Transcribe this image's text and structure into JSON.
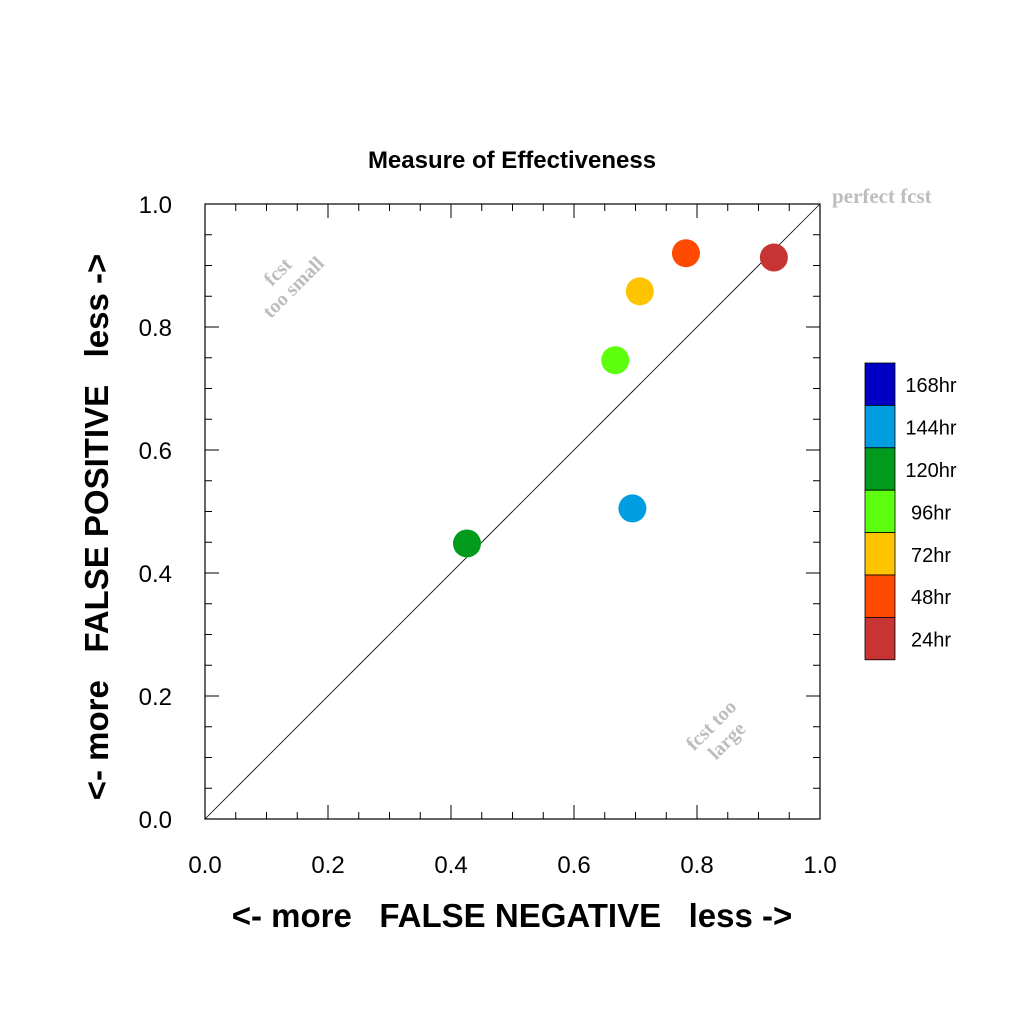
{
  "chart_data": {
    "type": "scatter",
    "title": "Measure of Effectiveness",
    "xlabel": "<- more   FALSE NEGATIVE   less ->",
    "ylabel": "<- more   FALSE POSITIVE   less ->",
    "xlim": [
      0,
      1
    ],
    "ylim": [
      0,
      1
    ],
    "xticks": [
      "0.0",
      "0.2",
      "0.4",
      "0.6",
      "0.8",
      "1.0"
    ],
    "yticks": [
      "0.0",
      "0.2",
      "0.4",
      "0.6",
      "0.8",
      "1.0"
    ],
    "diagonal_label": "perfect fcst",
    "annotations": {
      "too_small": [
        "fcst",
        "too small"
      ],
      "too_large": [
        "fcst too",
        "large"
      ]
    },
    "legend_position": "right",
    "legend": [
      {
        "label": "168hr",
        "color": "#0000c4"
      },
      {
        "label": "144hr",
        "color": "#009ee0"
      },
      {
        "label": "120hr",
        "color": "#009a1c"
      },
      {
        "label": "96hr",
        "color": "#5cff0e"
      },
      {
        "label": "72hr",
        "color": "#ffc400"
      },
      {
        "label": "48hr",
        "color": "#ff4a00"
      },
      {
        "label": "24hr",
        "color": "#c83434"
      }
    ],
    "points": [
      {
        "series": "24hr",
        "x": 0.925,
        "y": 0.913,
        "color": "#c83434"
      },
      {
        "series": "48hr",
        "x": 0.782,
        "y": 0.92,
        "color": "#ff4a00"
      },
      {
        "series": "72hr",
        "x": 0.707,
        "y": 0.858,
        "color": "#ffc400"
      },
      {
        "series": "96hr",
        "x": 0.667,
        "y": 0.746,
        "color": "#5cff0e"
      },
      {
        "series": "120hr",
        "x": 0.426,
        "y": 0.448,
        "color": "#009a1c"
      },
      {
        "series": "144hr",
        "x": 0.695,
        "y": 0.505,
        "color": "#009ee0"
      }
    ]
  }
}
